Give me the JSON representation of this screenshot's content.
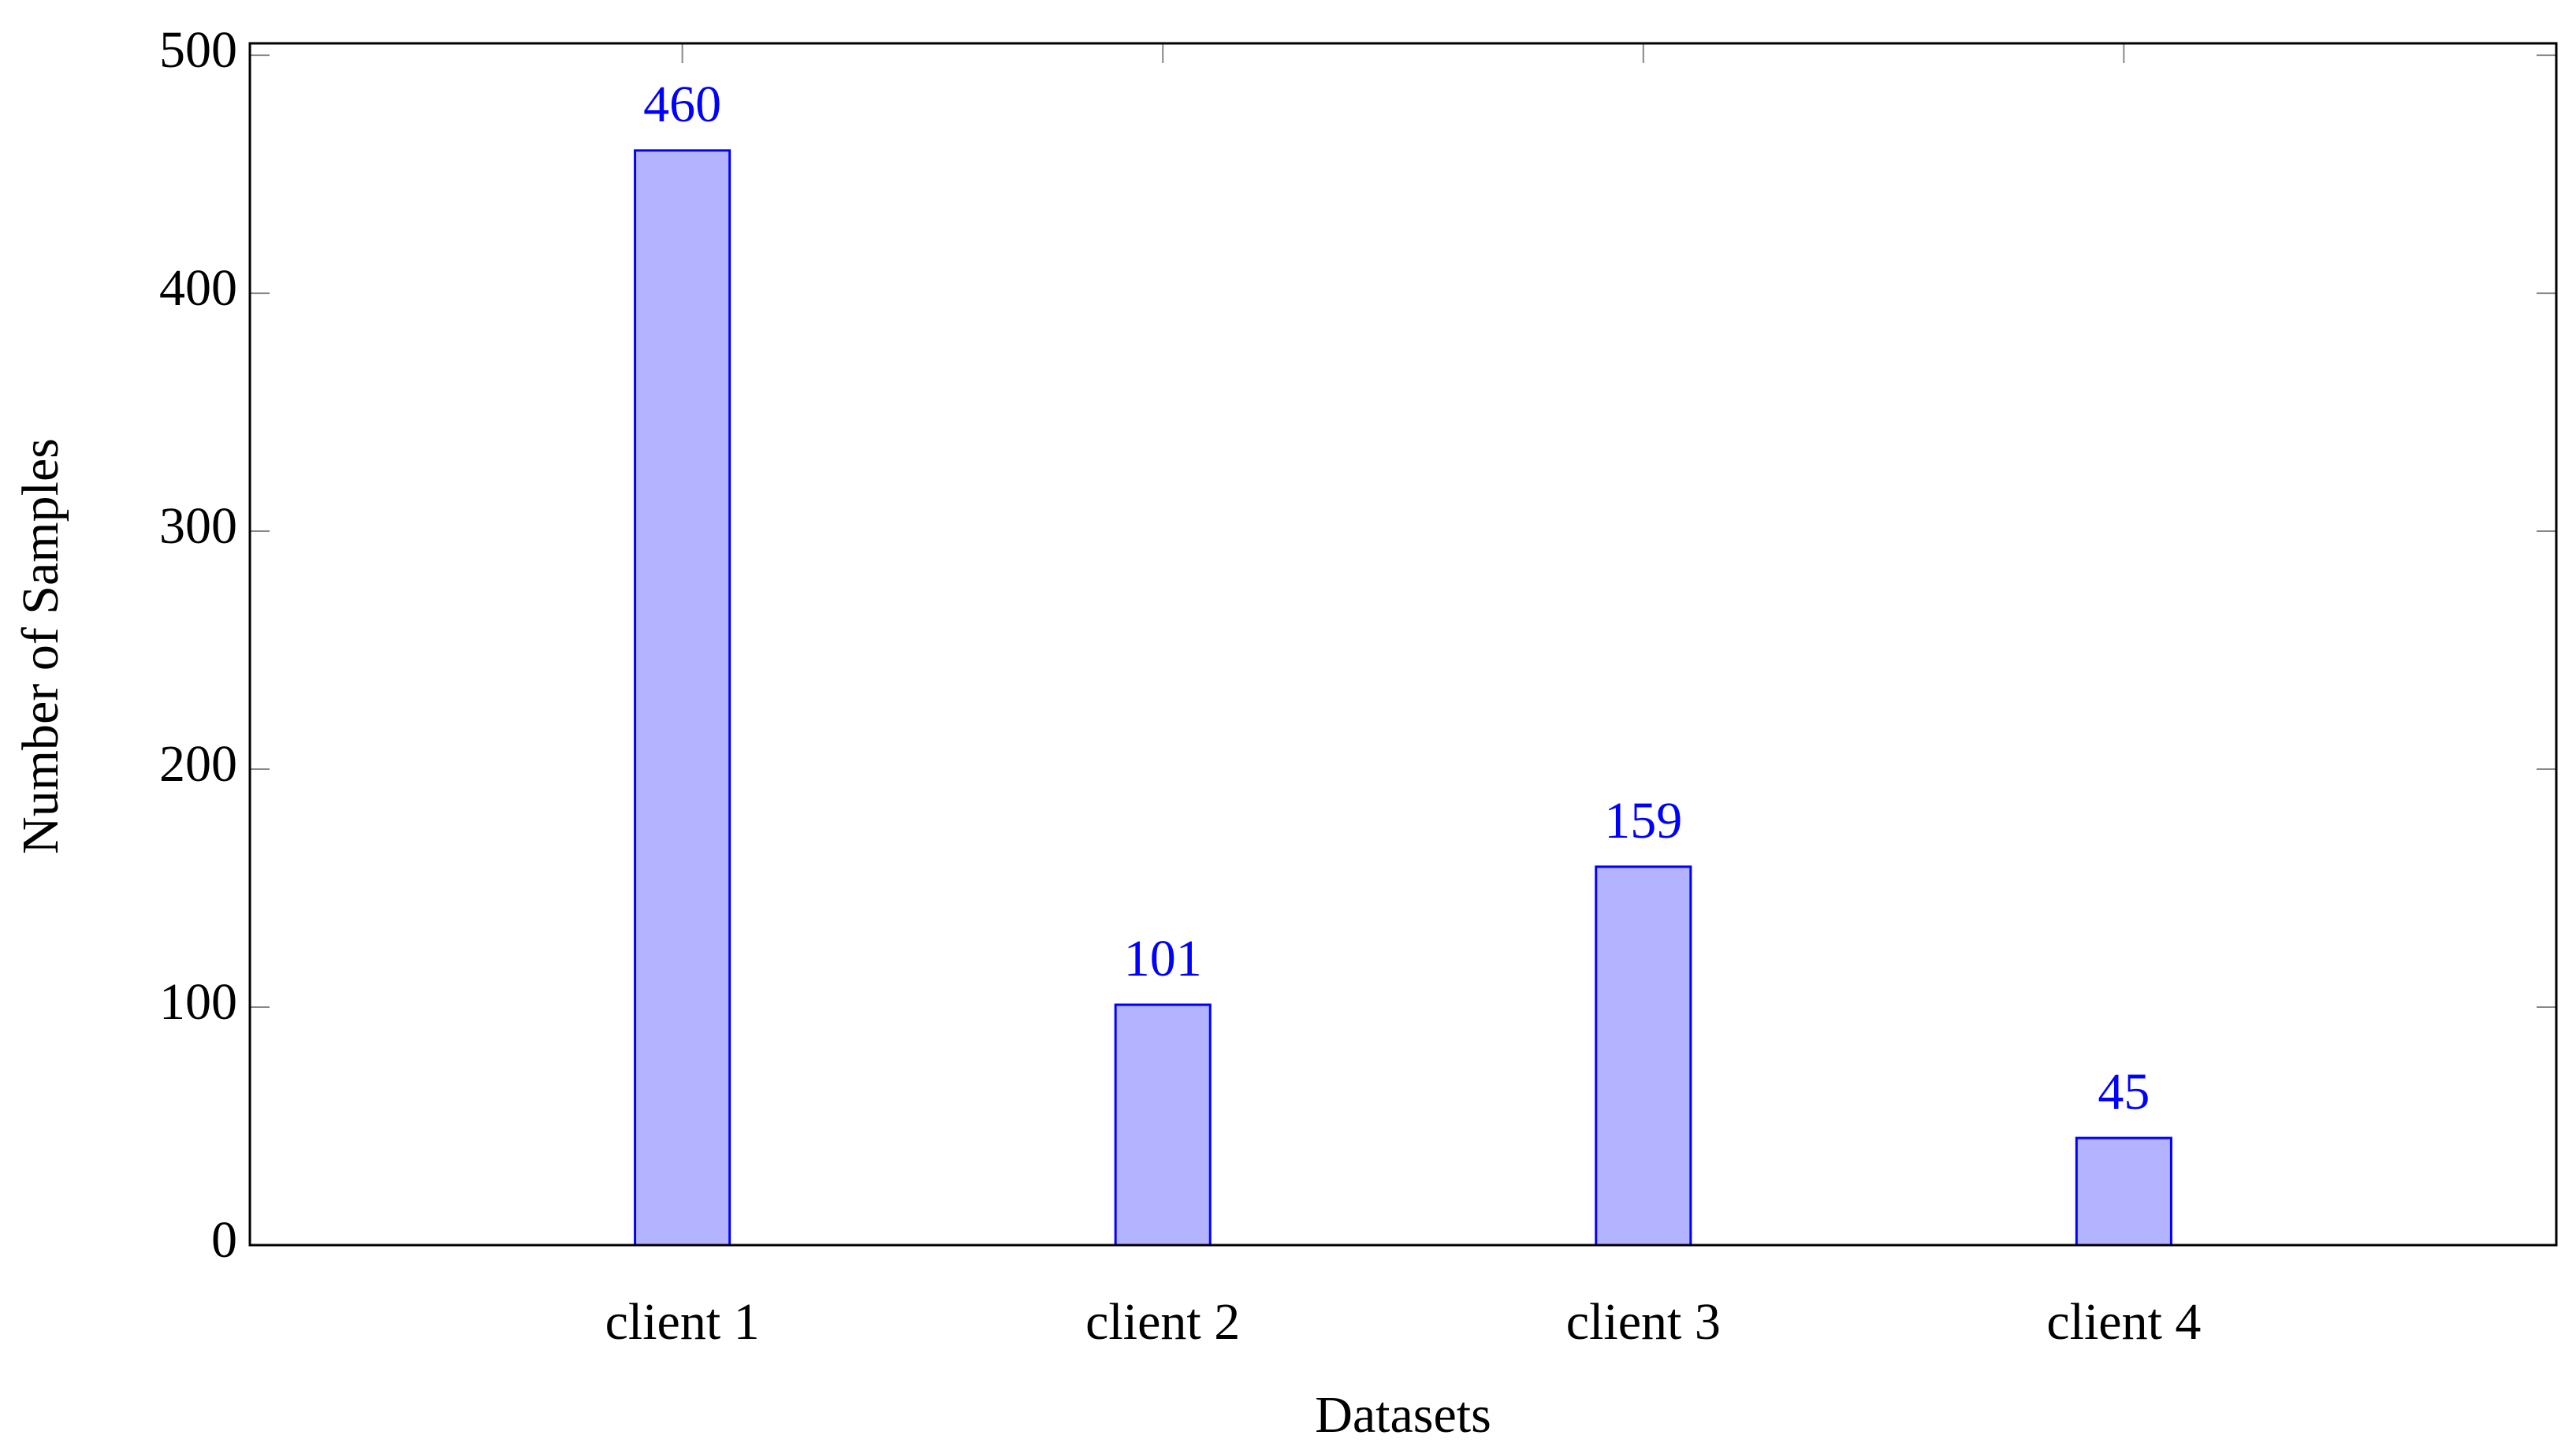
{
  "chart_data": {
    "type": "bar",
    "xlabel": "Datasets",
    "ylabel": "Number of Samples",
    "categories": [
      "client 1",
      "client 2",
      "client 3",
      "client 4"
    ],
    "values": [
      460,
      101,
      159,
      45
    ],
    "color": "#b3b3ff",
    "edge_color": "#0000ff",
    "label_color": "#0000ff",
    "ylim": [
      0,
      505
    ],
    "yticks": [
      0,
      100,
      200,
      300,
      400,
      500
    ],
    "grid": false
  }
}
